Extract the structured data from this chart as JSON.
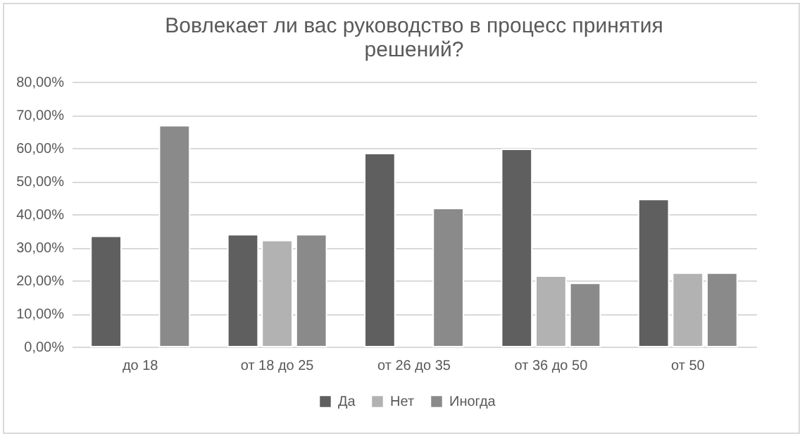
{
  "chart_data": {
    "type": "bar",
    "title": "Вовлекает ли вас руководство в процесс принятия решений?",
    "categories": [
      "до 18",
      "от 18 до 25",
      "от 26 до 35",
      "от 36 до 50",
      "от 50"
    ],
    "series": [
      {
        "name": "Да",
        "color": "#5f5f5f",
        "values": [
          33.3,
          33.8,
          58.3,
          59.6,
          44.4
        ]
      },
      {
        "name": "Нет",
        "color": "#b2b2b2",
        "values": [
          null,
          32,
          null,
          21.3,
          22.2
        ]
      },
      {
        "name": "Иногда",
        "color": "#8a8a8a",
        "values": [
          66.7,
          33.8,
          41.7,
          19.1,
          22.2
        ]
      }
    ],
    "ylim": [
      0,
      80
    ],
    "yticks": [
      {
        "value": 0,
        "label": "0,00%"
      },
      {
        "value": 10,
        "label": "10,00%"
      },
      {
        "value": 20,
        "label": "20,00%"
      },
      {
        "value": 30,
        "label": "30,00%"
      },
      {
        "value": 40,
        "label": "40,00%"
      },
      {
        "value": 50,
        "label": "50,00%"
      },
      {
        "value": 60,
        "label": "60,00%"
      },
      {
        "value": 70,
        "label": "70,00%"
      },
      {
        "value": 80,
        "label": "80,00%"
      }
    ],
    "grid": "y",
    "legend": "bottom"
  }
}
